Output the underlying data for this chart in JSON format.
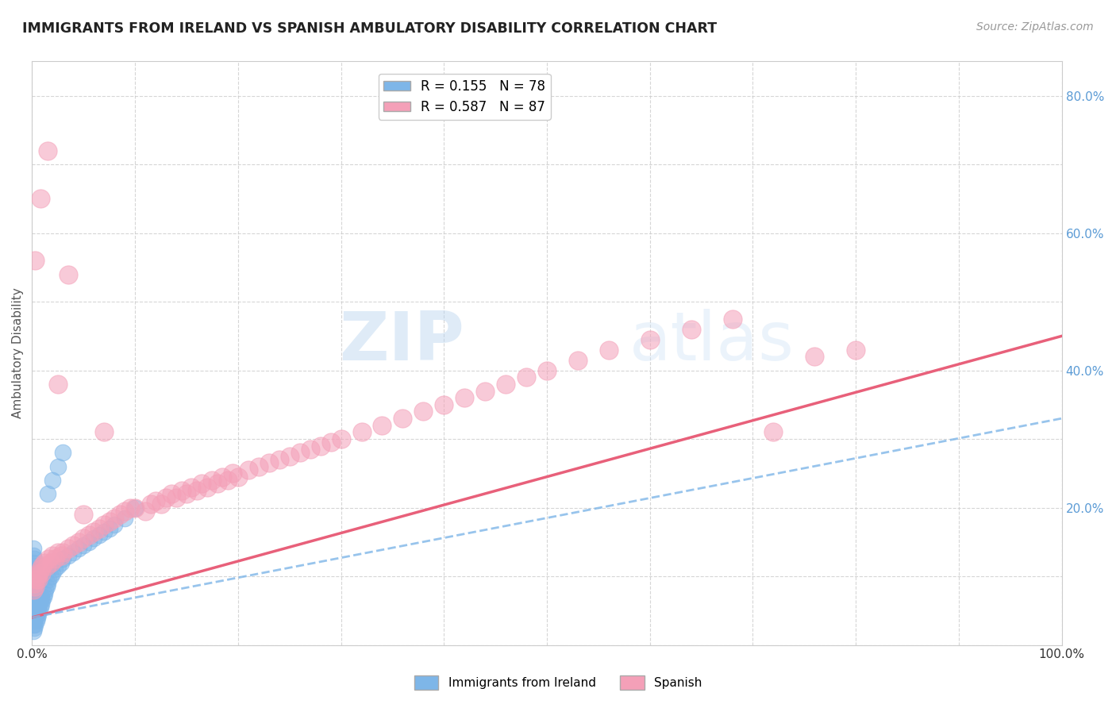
{
  "title": "IMMIGRANTS FROM IRELAND VS SPANISH AMBULATORY DISABILITY CORRELATION CHART",
  "source": "Source: ZipAtlas.com",
  "ylabel": "Ambulatory Disability",
  "xlim": [
    0,
    1.0
  ],
  "ylim": [
    0,
    0.85
  ],
  "ireland_color": "#7eb6e8",
  "spanish_color": "#f4a0b8",
  "ireland_line_color": "#7eb6e8",
  "spanish_line_color": "#e8607a",
  "ireland_R": 0.155,
  "ireland_N": 78,
  "spanish_R": 0.587,
  "spanish_N": 87,
  "legend_label_ireland": "Immigrants from Ireland",
  "legend_label_spanish": "Spanish",
  "watermark_zip": "ZIP",
  "watermark_atlas": "atlas",
  "ireland_x": [
    0.001,
    0.001,
    0.001,
    0.001,
    0.001,
    0.001,
    0.001,
    0.001,
    0.001,
    0.001,
    0.001,
    0.001,
    0.001,
    0.002,
    0.002,
    0.002,
    0.002,
    0.002,
    0.002,
    0.002,
    0.002,
    0.002,
    0.002,
    0.002,
    0.003,
    0.003,
    0.003,
    0.003,
    0.003,
    0.003,
    0.003,
    0.004,
    0.004,
    0.004,
    0.004,
    0.004,
    0.005,
    0.005,
    0.005,
    0.005,
    0.006,
    0.006,
    0.006,
    0.007,
    0.007,
    0.008,
    0.008,
    0.009,
    0.009,
    0.01,
    0.011,
    0.012,
    0.013,
    0.014,
    0.015,
    0.016,
    0.018,
    0.02,
    0.022,
    0.025,
    0.028,
    0.03,
    0.035,
    0.04,
    0.045,
    0.05,
    0.055,
    0.06,
    0.065,
    0.07,
    0.075,
    0.08,
    0.09,
    0.1,
    0.015,
    0.02,
    0.025,
    0.03
  ],
  "ireland_y": [
    0.02,
    0.03,
    0.04,
    0.05,
    0.06,
    0.07,
    0.08,
    0.09,
    0.1,
    0.11,
    0.12,
    0.13,
    0.14,
    0.025,
    0.035,
    0.045,
    0.055,
    0.065,
    0.075,
    0.085,
    0.095,
    0.105,
    0.115,
    0.125,
    0.03,
    0.04,
    0.05,
    0.06,
    0.07,
    0.08,
    0.09,
    0.035,
    0.045,
    0.055,
    0.065,
    0.075,
    0.04,
    0.05,
    0.06,
    0.07,
    0.045,
    0.055,
    0.065,
    0.05,
    0.06,
    0.055,
    0.065,
    0.06,
    0.07,
    0.065,
    0.07,
    0.075,
    0.08,
    0.085,
    0.09,
    0.095,
    0.1,
    0.105,
    0.11,
    0.115,
    0.12,
    0.125,
    0.13,
    0.135,
    0.14,
    0.145,
    0.15,
    0.155,
    0.16,
    0.165,
    0.17,
    0.175,
    0.185,
    0.2,
    0.22,
    0.24,
    0.26,
    0.28
  ],
  "spanish_x": [
    0.001,
    0.002,
    0.003,
    0.004,
    0.005,
    0.006,
    0.007,
    0.008,
    0.009,
    0.01,
    0.012,
    0.014,
    0.016,
    0.018,
    0.02,
    0.022,
    0.025,
    0.028,
    0.03,
    0.035,
    0.04,
    0.045,
    0.05,
    0.055,
    0.06,
    0.065,
    0.07,
    0.075,
    0.08,
    0.085,
    0.09,
    0.095,
    0.1,
    0.11,
    0.115,
    0.12,
    0.125,
    0.13,
    0.135,
    0.14,
    0.145,
    0.15,
    0.155,
    0.16,
    0.165,
    0.17,
    0.175,
    0.18,
    0.185,
    0.19,
    0.195,
    0.2,
    0.21,
    0.22,
    0.23,
    0.24,
    0.25,
    0.26,
    0.27,
    0.28,
    0.29,
    0.3,
    0.32,
    0.34,
    0.36,
    0.38,
    0.4,
    0.42,
    0.44,
    0.46,
    0.48,
    0.5,
    0.53,
    0.56,
    0.6,
    0.64,
    0.68,
    0.72,
    0.76,
    0.8,
    0.003,
    0.008,
    0.015,
    0.025,
    0.035,
    0.05,
    0.07
  ],
  "spanish_y": [
    0.08,
    0.09,
    0.085,
    0.095,
    0.1,
    0.095,
    0.105,
    0.11,
    0.105,
    0.115,
    0.12,
    0.115,
    0.125,
    0.12,
    0.13,
    0.125,
    0.135,
    0.13,
    0.135,
    0.14,
    0.145,
    0.15,
    0.155,
    0.16,
    0.165,
    0.17,
    0.175,
    0.18,
    0.185,
    0.19,
    0.195,
    0.2,
    0.2,
    0.195,
    0.205,
    0.21,
    0.205,
    0.215,
    0.22,
    0.215,
    0.225,
    0.22,
    0.23,
    0.225,
    0.235,
    0.23,
    0.24,
    0.235,
    0.245,
    0.24,
    0.25,
    0.245,
    0.255,
    0.26,
    0.265,
    0.27,
    0.275,
    0.28,
    0.285,
    0.29,
    0.295,
    0.3,
    0.31,
    0.32,
    0.33,
    0.34,
    0.35,
    0.36,
    0.37,
    0.38,
    0.39,
    0.4,
    0.415,
    0.43,
    0.445,
    0.46,
    0.475,
    0.31,
    0.42,
    0.43,
    0.56,
    0.65,
    0.72,
    0.38,
    0.54,
    0.19,
    0.31
  ]
}
